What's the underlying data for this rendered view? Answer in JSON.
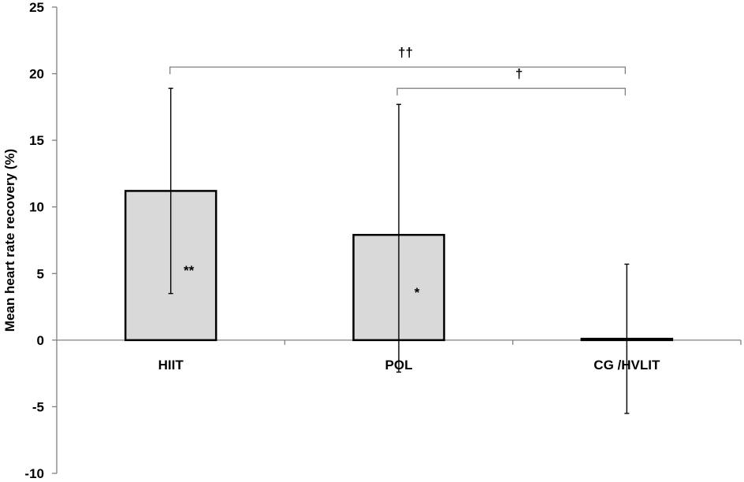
{
  "chart_data": {
    "type": "bar",
    "title": "",
    "xlabel": "",
    "ylabel": "Mean heart rate recovery (%)",
    "ylim": [
      -10,
      25
    ],
    "yticks": [
      -10,
      -5,
      0,
      5,
      10,
      15,
      20,
      25
    ],
    "ytick_labels": [
      "-10",
      "-5",
      "0",
      "5",
      "10",
      "15",
      "20",
      "25"
    ],
    "categories": [
      "HIIT",
      "POL",
      "CG /HVLIT"
    ],
    "series": [
      {
        "values": [
          11.2,
          7.9,
          0.1
        ],
        "error_upper": [
          18.9,
          17.7,
          5.7
        ],
        "error_lower": [
          3.5,
          -2.4,
          -5.5
        ]
      }
    ],
    "bar_annotations": [
      "**",
      "*",
      ""
    ],
    "comparisons": [
      {
        "from": "HIIT",
        "to": "CG /HVLIT",
        "label": "††",
        "level": 20.5
      },
      {
        "from": "POL",
        "to": "CG /HVLIT",
        "label": "†",
        "level": 18.9
      }
    ],
    "grid": false,
    "legend": "none",
    "colors": {
      "bar_fill": "#d9d9d9",
      "bar_stroke": "#000000",
      "axis": "#808080",
      "bracket": "#808080",
      "text": "#000000"
    }
  }
}
